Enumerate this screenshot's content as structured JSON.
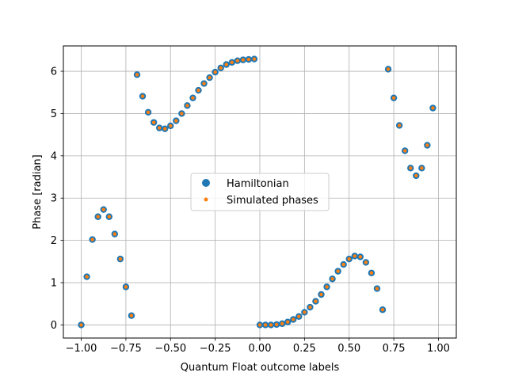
{
  "chart_data": {
    "type": "scatter",
    "xlabel": "Quantum Float outcome labels",
    "ylabel": "Phase [radian]",
    "xlim": [
      -1.1,
      1.1
    ],
    "ylim": [
      -0.31,
      6.6
    ],
    "xticks": [
      -1.0,
      -0.75,
      -0.5,
      -0.25,
      0.0,
      0.25,
      0.5,
      0.75,
      1.0
    ],
    "xtick_labels": [
      "−1.00",
      "−0.75",
      "−0.50",
      "−0.25",
      "0.00",
      "0.25",
      "0.50",
      "0.75",
      "1.00"
    ],
    "yticks": [
      0,
      1,
      2,
      3,
      4,
      5,
      6
    ],
    "ytick_labels": [
      "0",
      "1",
      "2",
      "3",
      "4",
      "5",
      "6"
    ],
    "grid": true,
    "legend_position": "center",
    "series": [
      {
        "name": "Hamiltonian",
        "color": "#1f77b4",
        "marker": "large-circle",
        "x": [
          -1.0,
          -0.96875,
          -0.9375,
          -0.90625,
          -0.875,
          -0.84375,
          -0.8125,
          -0.78125,
          -0.75,
          -0.71875,
          -0.6875,
          -0.65625,
          -0.625,
          -0.59375,
          -0.5625,
          -0.53125,
          -0.5,
          -0.46875,
          -0.4375,
          -0.40625,
          -0.375,
          -0.34375,
          -0.3125,
          -0.28125,
          -0.25,
          -0.21875,
          -0.1875,
          -0.15625,
          -0.125,
          -0.09375,
          -0.0625,
          -0.03125,
          0.0,
          0.03125,
          0.0625,
          0.09375,
          0.125,
          0.15625,
          0.1875,
          0.21875,
          0.25,
          0.28125,
          0.3125,
          0.34375,
          0.375,
          0.40625,
          0.4375,
          0.46875,
          0.5,
          0.53125,
          0.5625,
          0.59375,
          0.625,
          0.65625,
          0.6875,
          0.71875,
          0.75,
          0.78125,
          0.8125,
          0.84375,
          0.875,
          0.90625,
          0.9375,
          0.96875
        ],
        "y": [
          0.0,
          1.14,
          2.02,
          2.56,
          2.73,
          2.56,
          2.15,
          1.56,
          0.9,
          0.22,
          5.92,
          5.41,
          5.03,
          4.79,
          4.66,
          4.64,
          4.71,
          4.83,
          5.0,
          5.19,
          5.37,
          5.55,
          5.71,
          5.85,
          5.98,
          6.08,
          6.16,
          6.21,
          6.25,
          6.27,
          6.28,
          6.29,
          0.0,
          0.0,
          0.0,
          0.01,
          0.03,
          0.07,
          0.13,
          0.2,
          0.3,
          0.42,
          0.56,
          0.72,
          0.9,
          1.09,
          1.27,
          1.43,
          1.56,
          1.63,
          1.61,
          1.48,
          1.23,
          0.86,
          0.36,
          6.05,
          5.37,
          4.72,
          4.12,
          3.71,
          3.53,
          3.71,
          4.25,
          5.13
        ]
      },
      {
        "name": "Simulated phases",
        "color": "#ff7f0e",
        "marker": "small-dot",
        "x": [
          -1.0,
          -0.96875,
          -0.9375,
          -0.90625,
          -0.875,
          -0.84375,
          -0.8125,
          -0.78125,
          -0.75,
          -0.71875,
          -0.6875,
          -0.65625,
          -0.625,
          -0.59375,
          -0.5625,
          -0.53125,
          -0.5,
          -0.46875,
          -0.4375,
          -0.40625,
          -0.375,
          -0.34375,
          -0.3125,
          -0.28125,
          -0.25,
          -0.21875,
          -0.1875,
          -0.15625,
          -0.125,
          -0.09375,
          -0.0625,
          -0.03125,
          0.0,
          0.03125,
          0.0625,
          0.09375,
          0.125,
          0.15625,
          0.1875,
          0.21875,
          0.25,
          0.28125,
          0.3125,
          0.34375,
          0.375,
          0.40625,
          0.4375,
          0.46875,
          0.5,
          0.53125,
          0.5625,
          0.59375,
          0.625,
          0.65625,
          0.6875,
          0.71875,
          0.75,
          0.78125,
          0.8125,
          0.84375,
          0.875,
          0.90625,
          0.9375,
          0.96875
        ],
        "y": [
          0.0,
          1.14,
          2.02,
          2.56,
          2.73,
          2.56,
          2.15,
          1.56,
          0.9,
          0.22,
          5.92,
          5.41,
          5.03,
          4.79,
          4.66,
          4.64,
          4.71,
          4.83,
          5.0,
          5.19,
          5.37,
          5.55,
          5.71,
          5.85,
          5.98,
          6.08,
          6.16,
          6.21,
          6.25,
          6.27,
          6.28,
          6.29,
          0.0,
          0.0,
          0.0,
          0.01,
          0.03,
          0.07,
          0.13,
          0.2,
          0.3,
          0.42,
          0.56,
          0.72,
          0.9,
          1.09,
          1.27,
          1.43,
          1.56,
          1.63,
          1.61,
          1.48,
          1.23,
          0.86,
          0.36,
          6.05,
          5.37,
          4.72,
          4.12,
          3.71,
          3.53,
          3.71,
          4.25,
          5.13
        ]
      }
    ]
  }
}
